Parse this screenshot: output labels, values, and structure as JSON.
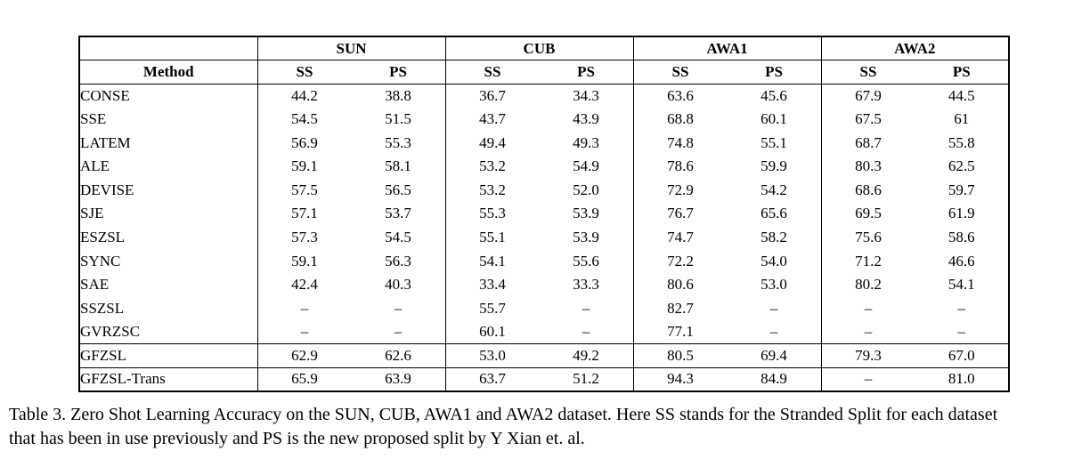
{
  "table": {
    "corner_label": "",
    "method_header": "Method",
    "groups": [
      {
        "label": "SUN"
      },
      {
        "label": "CUB"
      },
      {
        "label": "AWA1"
      },
      {
        "label": "AWA2"
      }
    ],
    "subheader": {
      "ss": "SS",
      "ps": "PS"
    },
    "rows": [
      {
        "method": "CONSE",
        "values": [
          "44.2",
          "38.8",
          "36.7",
          "34.3",
          "63.6",
          "45.6",
          "67.9",
          "44.5"
        ],
        "bold": [
          false,
          false,
          false,
          false,
          false,
          false,
          false,
          false
        ],
        "rule_above": false
      },
      {
        "method": "SSE",
        "values": [
          "54.5",
          "51.5",
          "43.7",
          "43.9",
          "68.8",
          "60.1",
          "67.5",
          "61"
        ],
        "bold": [
          false,
          false,
          false,
          false,
          false,
          false,
          false,
          false
        ],
        "rule_above": false
      },
      {
        "method": "LATEM",
        "values": [
          "56.9",
          "55.3",
          "49.4",
          "49.3",
          "74.8",
          "55.1",
          "68.7",
          "55.8"
        ],
        "bold": [
          false,
          false,
          false,
          false,
          false,
          false,
          false,
          false
        ],
        "rule_above": false
      },
      {
        "method": "ALE",
        "values": [
          "59.1",
          "58.1",
          "53.2",
          "54.9",
          "78.6",
          "59.9",
          "80.3",
          "62.5"
        ],
        "bold": [
          false,
          false,
          false,
          false,
          false,
          false,
          false,
          false
        ],
        "rule_above": false
      },
      {
        "method": "DEVISE",
        "values": [
          "57.5",
          "56.5",
          "53.2",
          "52.0",
          "72.9",
          "54.2",
          "68.6",
          "59.7"
        ],
        "bold": [
          false,
          false,
          false,
          false,
          false,
          false,
          false,
          false
        ],
        "rule_above": false
      },
      {
        "method": "SJE",
        "values": [
          "57.1",
          "53.7",
          "55.3",
          "53.9",
          "76.7",
          "65.6",
          "69.5",
          "61.9"
        ],
        "bold": [
          false,
          false,
          false,
          false,
          false,
          false,
          false,
          false
        ],
        "rule_above": false
      },
      {
        "method": "ESZSL",
        "values": [
          "57.3",
          "54.5",
          "55.1",
          "53.9",
          "74.7",
          "58.2",
          "75.6",
          "58.6"
        ],
        "bold": [
          false,
          false,
          false,
          false,
          false,
          false,
          false,
          false
        ],
        "rule_above": false
      },
      {
        "method": "SYNC",
        "values": [
          "59.1",
          "56.3",
          "54.1",
          "55.6",
          "72.2",
          "54.0",
          "71.2",
          "46.6"
        ],
        "bold": [
          false,
          false,
          false,
          true,
          false,
          false,
          false,
          false
        ],
        "rule_above": false
      },
      {
        "method": "SAE",
        "values": [
          "42.4",
          "40.3",
          "33.4",
          "33.3",
          "80.6",
          "53.0",
          "80.2",
          "54.1"
        ],
        "bold": [
          false,
          false,
          false,
          false,
          true,
          false,
          false,
          false
        ],
        "rule_above": false
      },
      {
        "method": "SSZSL",
        "values": [
          "–",
          "–",
          "55.7",
          "–",
          "82.7",
          "–",
          "–",
          "–"
        ],
        "bold": [
          false,
          false,
          false,
          false,
          false,
          false,
          false,
          false
        ],
        "rule_above": false
      },
      {
        "method": "GVRZSC",
        "values": [
          "–",
          "–",
          "60.1",
          "–",
          "77.1",
          "–",
          "–",
          "–"
        ],
        "bold": [
          false,
          false,
          true,
          false,
          false,
          false,
          false,
          false
        ],
        "rule_above": false
      },
      {
        "method": "GFZSL",
        "values": [
          "62.9",
          "62.6",
          "53.0",
          "49.2",
          "80.5",
          "69.4",
          "79.3",
          "67.0"
        ],
        "bold": [
          true,
          true,
          false,
          false,
          false,
          true,
          false,
          true
        ],
        "rule_above": true
      },
      {
        "method": "GFZSL-Trans",
        "values": [
          "65.9",
          "63.9",
          "63.7",
          "51.2",
          "94.3",
          "84.9",
          "–",
          "81.0"
        ],
        "bold": [
          true,
          true,
          true,
          false,
          true,
          true,
          false,
          true
        ],
        "rule_above": true
      }
    ]
  },
  "caption": {
    "line1": "Table 3. Zero Shot Learning Accuracy on the SUN, CUB, AWA1 and AWA2 dataset. Here SS stands for the Stranded Split for each dataset",
    "line2": "that has been in use previously and PS is the new proposed split by Y Xian et. al."
  }
}
